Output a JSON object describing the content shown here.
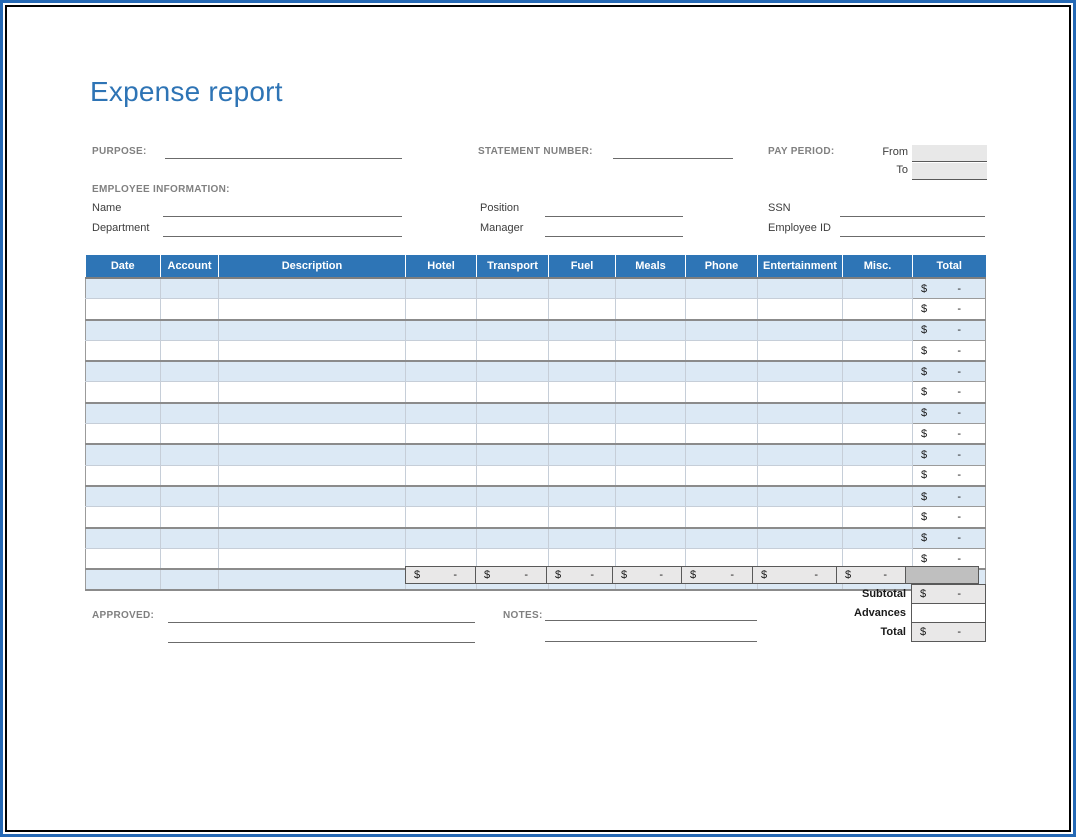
{
  "page": {
    "title": "Expense report"
  },
  "colors": {
    "accent": "#2E74B5",
    "frame_blue": "#2569B5",
    "label_gray": "#808080",
    "table_header_bg": "#2E75B6",
    "row_stripe_bg": "#DCE9F5",
    "total_column_bg": "#E9E8E8",
    "grand_cell_bg": "#BFBFBF"
  },
  "header_fields": {
    "purpose_label": "PURPOSE:",
    "statement_number_label": "STATEMENT NUMBER:",
    "pay_period_label": "PAY PERIOD:",
    "from_label": "From",
    "to_label": "To"
  },
  "employee": {
    "section_label": "EMPLOYEE INFORMATION:",
    "name_label": "Name",
    "position_label": "Position",
    "ssn_label": "SSN",
    "department_label": "Department",
    "manager_label": "Manager",
    "employee_id_label": "Employee ID"
  },
  "table": {
    "columns": [
      "Date",
      "Account",
      "Description",
      "Hotel",
      "Transport",
      "Fuel",
      "Meals",
      "Phone",
      "Entertainment",
      "Misc.",
      "Total"
    ],
    "row_count": 15,
    "row_total": {
      "currency": "$",
      "amount": "-"
    },
    "column_total": {
      "currency": "$",
      "amount": "-"
    },
    "column_totals_for": [
      "Hotel",
      "Transport",
      "Fuel",
      "Meals",
      "Phone",
      "Entertainment",
      "Misc."
    ]
  },
  "summary": {
    "subtotal_label": "Subtotal",
    "subtotal": {
      "currency": "$",
      "amount": "-"
    },
    "advances_label": "Advances",
    "advances_value": "",
    "total_label": "Total",
    "total": {
      "currency": "$",
      "amount": "-"
    }
  },
  "footer": {
    "approved_label": "APPROVED:",
    "notes_label": "NOTES:"
  }
}
